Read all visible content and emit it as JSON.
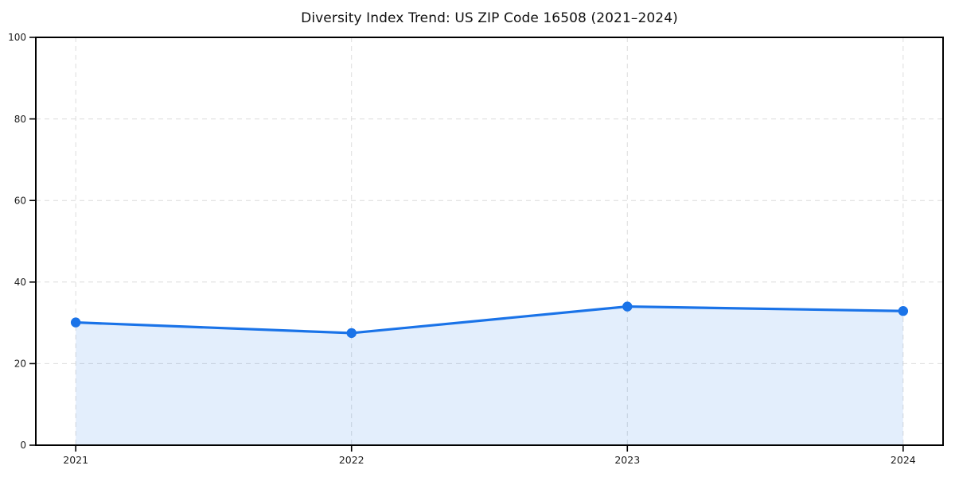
{
  "chart_data": {
    "type": "area",
    "title": "Diversity Index Trend: US ZIP Code 16508 (2021–2024)",
    "categories": [
      "2021",
      "2022",
      "2023",
      "2024"
    ],
    "series": [
      {
        "name": "Diversity Index",
        "values": [
          30.1,
          27.5,
          34.0,
          32.9
        ]
      }
    ],
    "xlabel": "",
    "ylabel": "",
    "ylim": [
      0,
      100
    ],
    "y_ticks": [
      0,
      20,
      40,
      60,
      80,
      100
    ],
    "grid": "dashed gridlines on both axes",
    "legend": "none",
    "style": {
      "line_color": "#1a73e8",
      "marker_color": "#1a73e8",
      "fill_color": "#1a73e8",
      "fill_opacity": 0.12,
      "grid_color": "#dcdcdc",
      "axis_color": "#000000",
      "marker": "circle"
    }
  }
}
